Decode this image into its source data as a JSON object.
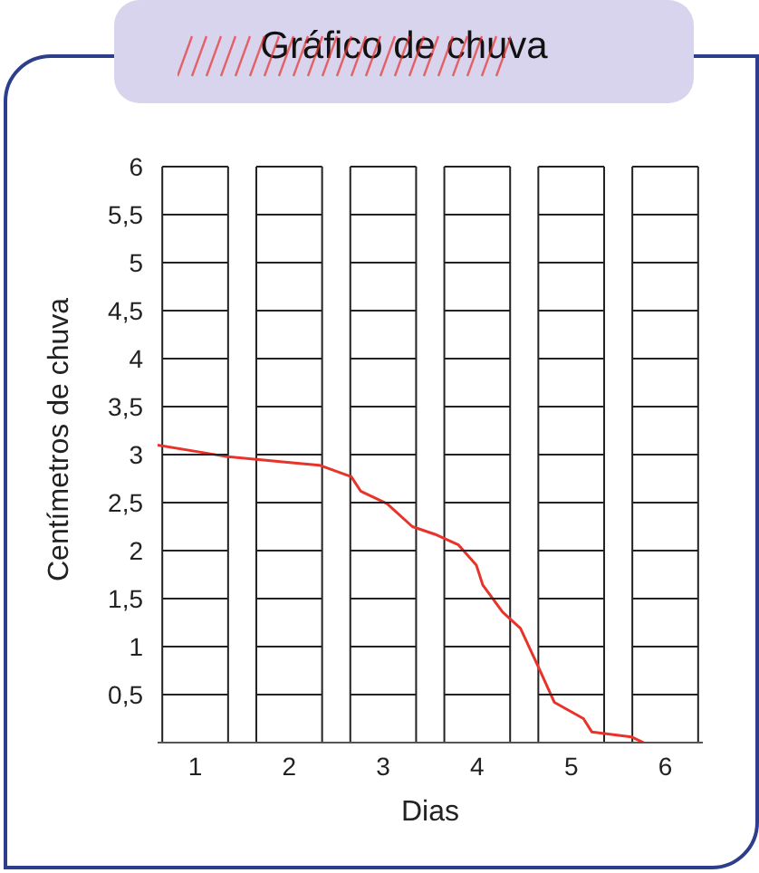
{
  "chart_data": {
    "type": "line",
    "title": "Gráfico de chuva",
    "xlabel": "Dias",
    "ylabel": "Centímetros de chuva",
    "x": [
      0.6,
      1.09,
      1.33,
      1.98,
      2.32,
      2.66,
      2.76,
      3.04,
      3.31,
      3.55,
      3.8,
      3.99,
      4.06,
      4.27,
      4.46,
      4.65,
      4.82,
      5.13,
      5.22,
      5.64,
      5.77
    ],
    "series": [
      {
        "color": "#e8332b",
        "values": [
          3.1,
          3.02,
          2.98,
          2.92,
          2.89,
          2.77,
          2.62,
          2.49,
          2.25,
          2.17,
          2.06,
          1.85,
          1.64,
          1.36,
          1.19,
          0.79,
          0.42,
          0.25,
          0.11,
          0.06,
          0
        ]
      }
    ],
    "xlim": [
      0.6,
      6.4
    ],
    "xticks": [
      1,
      2,
      3,
      4,
      5,
      6
    ],
    "ylim": [
      0,
      6
    ],
    "yticks": [
      {
        "value": 0.5,
        "label": "0,5"
      },
      1,
      {
        "value": 1.5,
        "label": "1,5"
      },
      2,
      {
        "value": 2.5,
        "label": "2,5"
      },
      3,
      {
        "value": 3.5,
        "label": "3,5"
      },
      4,
      {
        "value": 4.5,
        "label": "4,5"
      },
      5,
      {
        "value": 5.5,
        "label": "5,5"
      },
      6
    ],
    "bands": [
      {
        "axis": "x",
        "from": 0.65,
        "to": 1.35,
        "color": "#ffffff"
      },
      {
        "axis": "x",
        "from": 1.65,
        "to": 2.35,
        "color": "#ffffff"
      },
      {
        "axis": "x",
        "from": 2.65,
        "to": 3.35,
        "color": "#ffffff"
      },
      {
        "axis": "x",
        "from": 3.65,
        "to": 4.35,
        "color": "#ffffff"
      },
      {
        "axis": "x",
        "from": 4.65,
        "to": 5.35,
        "color": "#ffffff"
      },
      {
        "axis": "x",
        "from": 5.65,
        "to": 6.35,
        "color": "#ffffff"
      }
    ],
    "grid": "y",
    "marker": "none",
    "line_style": "solid"
  }
}
